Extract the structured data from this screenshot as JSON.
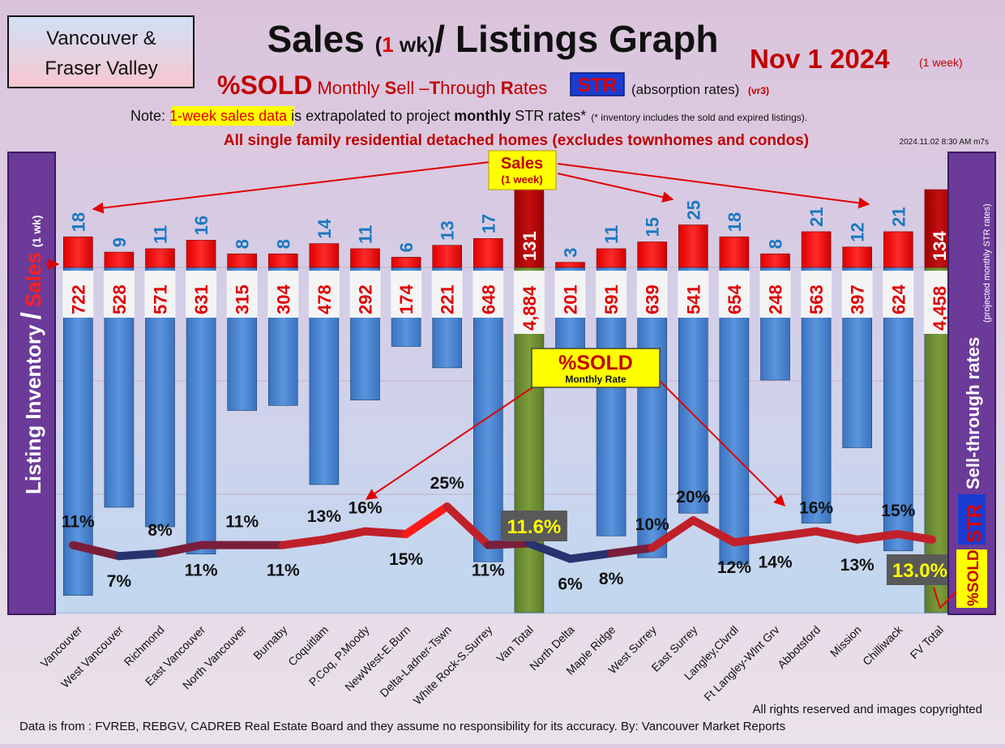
{
  "header": {
    "region_line1": "Vancouver &",
    "region_line2": "Fraser Valley",
    "title_main": "Sales ",
    "title_paren_open": "(",
    "title_one": "1",
    "title_wk": " wk)",
    "title_rest": "/ Listings Graph",
    "date": "Nov 1  2024",
    "date_note": "(1 week)",
    "sold_label": "%SOLD",
    "subtitle_monthly": " Monthly ",
    "subtitle_S": "S",
    "subtitle_ell": "ell –",
    "subtitle_T": "T",
    "subtitle_hrough": "hrough ",
    "subtitle_R": "R",
    "subtitle_ates": "ates",
    "str_badge": "STR",
    "absorption": "(absorption rates)",
    "version": "(vr3)",
    "note_prefix": "Note: ",
    "note_highlight": "1-week sales data",
    "note_mid": " is extrapolated to project ",
    "note_bold": "monthly",
    "note_end": " STR rates*",
    "note_small": "(* inventory includes the sold and expired listings).",
    "scope": "All single family residential detached homes (excludes townhomes and condos)",
    "timestamp": "2024.11.02 8:30 AM m7s"
  },
  "callouts": {
    "sales_title": "Sales",
    "sales_sub": "(1 week)",
    "sold_title": "%SOLD",
    "sold_sub": "Monthly Rate"
  },
  "side_labels": {
    "left_inventory": "Listing Inventory",
    "left_slash": "/",
    "left_sales": "Sales",
    "left_wk": "(1 wk)",
    "right_main": "Sell-through rates",
    "right_sub": "(projected monthly STR rates)",
    "right_str": "STR",
    "right_sold": "%SOLD"
  },
  "footer": {
    "copyright": "All rights reserved and  images copyrighted",
    "source": "Data is from : FVREB, REBGV, CADREB Real Estate Board and they assume no responsibility for its accuracy. By: Vancouver Market Reports"
  },
  "colors": {
    "inventory_bar": "#4a86d0",
    "total_bar": "#6e9034",
    "sales_bar": "#ff0000",
    "total_sales_bar": "#b50000",
    "sales_label": "#1c78c0",
    "inventory_label": "#e00000",
    "str_line": "#c0202a",
    "str_line_low": "#1e3a78"
  },
  "chart_data": {
    "type": "bar",
    "categories": [
      "Vancouver",
      "West Vancouver",
      "Richmond",
      "East Vancouver",
      "North Vancouver",
      "Burnaby",
      "Coquitlam",
      "P.Coq, P.Moody",
      "NewWest-E.Burn",
      "Delta-Ladner-Tswn",
      "White Rock-S.Surrey",
      "Van Total",
      "North Delta",
      "Maple Ridge",
      "West Surrey",
      "East Surrey",
      "Langley,Clvrdl",
      "Ft Langley-Wlnt Grv",
      "Abbotsford",
      "Mission",
      "Chilliwack",
      "FV Total"
    ],
    "is_total": [
      false,
      false,
      false,
      false,
      false,
      false,
      false,
      false,
      false,
      false,
      false,
      true,
      false,
      false,
      false,
      false,
      false,
      false,
      false,
      false,
      false,
      true
    ],
    "series": [
      {
        "name": "Listing Inventory",
        "values": [
          722,
          528,
          571,
          631,
          315,
          304,
          478,
          292,
          174,
          221,
          648,
          4884,
          201,
          591,
          639,
          541,
          654,
          248,
          563,
          397,
          624,
          4458
        ],
        "labels": [
          "722",
          "528",
          "571",
          "631",
          "315",
          "304",
          "478",
          "292",
          "174",
          "221",
          "648",
          "4,884",
          "201",
          "591",
          "639",
          "541",
          "654",
          "248",
          "563",
          "397",
          "624",
          "4,458"
        ]
      },
      {
        "name": "Sales",
        "values": [
          18,
          9,
          11,
          16,
          8,
          8,
          14,
          11,
          6,
          13,
          17,
          131,
          3,
          11,
          15,
          25,
          18,
          8,
          21,
          12,
          21,
          134
        ],
        "labels": [
          "18",
          "9",
          "11",
          "16",
          "8",
          "8",
          "14",
          "11",
          "6",
          "13",
          "17",
          "131",
          "3",
          "11",
          "15",
          "25",
          "18",
          "8",
          "21",
          "12",
          "21",
          "134"
        ]
      },
      {
        "name": "%SOLD",
        "values": [
          11,
          7,
          8,
          11,
          11,
          11,
          13,
          16,
          15,
          25,
          11,
          11.6,
          6,
          8,
          10,
          20,
          12,
          14,
          16,
          13,
          15,
          13.0
        ],
        "labels": [
          "11%",
          "7%",
          "8%",
          "11%",
          "11%",
          "11%",
          "13%",
          "16%",
          "15%",
          "25%",
          "11%",
          "11.6%",
          "6%",
          "8%",
          "10%",
          "20%",
          "12%",
          "14%",
          "16%",
          "13%",
          "15%",
          "13.0%"
        ]
      }
    ]
  }
}
